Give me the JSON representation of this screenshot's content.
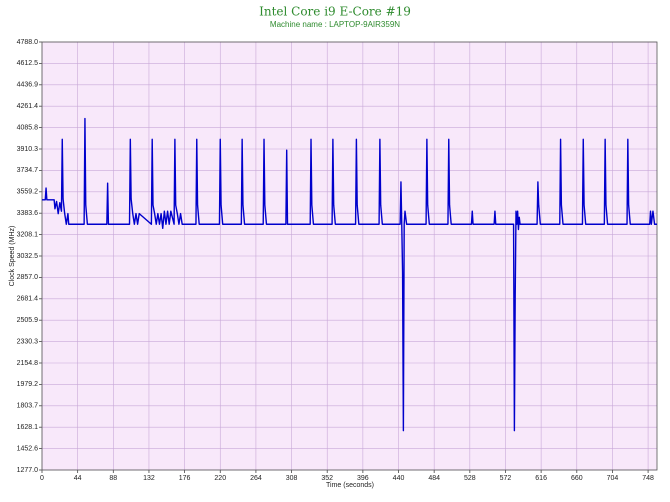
{
  "chart_data": {
    "type": "line",
    "title": "Intel Core i9 E-Core #19",
    "subtitle": "Machine name : LAPTOP-9AIR359N",
    "x_label": "Time (seconds)",
    "y_label": "Clock Speed (MHz)",
    "grid": true,
    "xlim": [
      0,
      759
    ],
    "xticks": [
      0,
      44,
      88,
      132,
      176,
      220,
      264,
      308,
      352,
      396,
      440,
      484,
      528,
      572,
      616,
      660,
      704,
      748
    ],
    "ylim": [
      1277,
      4788
    ],
    "yticks": [
      {
        "value": 1277,
        "label": "1277.0"
      },
      1452.6,
      1628.1,
      1803.7,
      1979.2,
      2154.8,
      2330.3,
      2505.9,
      2681.4,
      {
        "value": 2857,
        "label": "2857.0"
      },
      3032.5,
      3208.1,
      3383.6,
      3559.2,
      3734.7,
      3910.3,
      4085.8,
      4261.4,
      4436.9,
      4612.5,
      {
        "value": 4788,
        "label": "4788.0"
      }
    ],
    "series": [
      {
        "color": "#0000cc",
        "x": [
          0,
          4,
          5,
          6,
          15,
          16,
          18,
          20,
          22,
          24,
          25,
          26,
          28,
          30,
          32,
          33,
          34,
          52,
          53,
          54,
          56,
          80,
          81,
          82,
          108,
          109,
          110,
          112,
          114,
          116,
          118,
          120,
          135,
          136,
          137,
          139,
          141,
          143,
          145,
          147,
          149,
          151,
          153,
          155,
          157,
          159,
          163,
          164,
          165,
          167,
          169,
          171,
          173,
          190,
          191,
          192,
          194,
          219,
          220,
          221,
          223,
          246,
          247,
          248,
          250,
          273,
          274,
          275,
          277,
          301,
          302,
          303,
          331,
          332,
          333,
          335,
          358,
          359,
          360,
          362,
          387,
          388,
          389,
          391,
          416,
          417,
          418,
          420,
          442,
          443,
          444,
          445,
          446,
          447,
          448,
          450,
          474,
          475,
          476,
          478,
          501,
          502,
          503,
          505,
          530,
          531,
          532,
          558,
          559,
          560,
          582,
          583,
          584,
          585,
          586,
          587,
          588,
          589,
          590,
          611,
          612,
          613,
          615,
          639,
          640,
          641,
          643,
          667,
          668,
          669,
          671,
          694,
          695,
          696,
          698,
          722,
          723,
          724,
          726,
          750,
          751,
          752,
          754,
          756,
          759
        ],
        "values": [
          3493,
          3493,
          3590,
          3493,
          3493,
          3420,
          3480,
          3380,
          3470,
          3400,
          3990,
          3500,
          3380,
          3293,
          3380,
          3293,
          3293,
          3293,
          4160,
          3450,
          3293,
          3293,
          3630,
          3293,
          3293,
          3990,
          3500,
          3380,
          3293,
          3380,
          3293,
          3380,
          3293,
          3990,
          3450,
          3380,
          3293,
          3380,
          3293,
          3380,
          3260,
          3400,
          3293,
          3400,
          3293,
          3400,
          3293,
          3990,
          3450,
          3380,
          3293,
          3380,
          3293,
          3293,
          3990,
          3450,
          3293,
          3293,
          3990,
          3450,
          3293,
          3293,
          3990,
          3450,
          3293,
          3293,
          3990,
          3450,
          3293,
          3293,
          3900,
          3293,
          3293,
          3990,
          3450,
          3293,
          3293,
          3990,
          3450,
          3293,
          3293,
          3990,
          3450,
          3293,
          3293,
          3990,
          3450,
          3293,
          3293,
          3640,
          3293,
          2900,
          1600,
          3293,
          3400,
          3293,
          3293,
          3990,
          3450,
          3293,
          3293,
          3990,
          3450,
          3293,
          3293,
          3400,
          3293,
          3293,
          3400,
          3293,
          3293,
          1600,
          2700,
          3400,
          3293,
          3400,
          3250,
          3350,
          3293,
          3293,
          3640,
          3450,
          3293,
          3293,
          3990,
          3450,
          3293,
          3293,
          3990,
          3450,
          3293,
          3293,
          3990,
          3450,
          3293,
          3293,
          3990,
          3450,
          3293,
          3293,
          3400,
          3293,
          3400,
          3293,
          3293
        ]
      }
    ]
  }
}
